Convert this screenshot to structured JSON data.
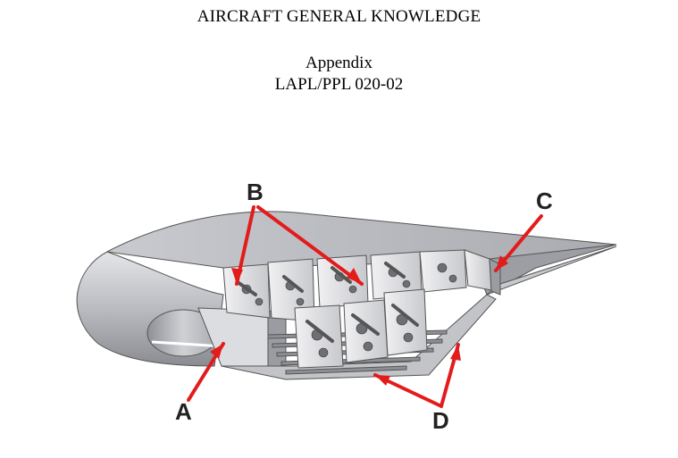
{
  "document": {
    "title": "AIRCRAFT GENERAL KNOWLEDGE",
    "appendix": "Appendix",
    "code": "LAPL/PPL 020-02"
  },
  "figure": {
    "labels": {
      "a": "A",
      "b": "B",
      "c": "C",
      "d": "D"
    },
    "colors": {
      "arrow": "#e31b1b",
      "skin": "#bfc0c4",
      "rib": "#d9d9dc",
      "shadow": "#6e6f74"
    }
  }
}
